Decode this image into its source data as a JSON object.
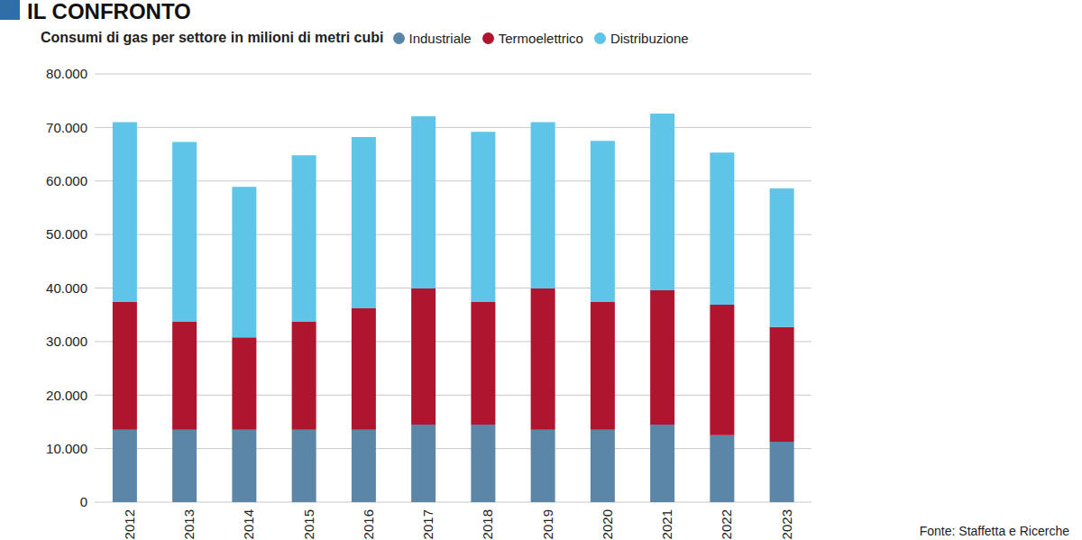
{
  "chart_data": {
    "type": "bar",
    "title": "IL CONFRONTO",
    "subtitle": "Consumi di gas per settore in milioni di metri cubi",
    "source": "Fonte: Staffetta e Ricerche",
    "categories": [
      "2012",
      "2013",
      "2014",
      "2015",
      "2016",
      "2017",
      "2018",
      "2019",
      "2020",
      "2021",
      "2022",
      "2023"
    ],
    "series": [
      {
        "name": "Industriale",
        "color": "#5b86a8",
        "values": [
          13500,
          13500,
          13500,
          13500,
          13500,
          14500,
          14500,
          13500,
          13500,
          14500,
          12500,
          11300
        ]
      },
      {
        "name": "Termoelettrico",
        "color": "#b01530",
        "values": [
          23900,
          20200,
          17300,
          20200,
          22700,
          25400,
          22900,
          26400,
          23900,
          25100,
          24400,
          21400
        ]
      },
      {
        "name": "Distribuzione",
        "color": "#5ec4e8",
        "values": [
          33600,
          33600,
          28100,
          31100,
          32000,
          32200,
          31800,
          31100,
          30100,
          33000,
          28400,
          25900
        ]
      }
    ],
    "ylim": [
      0,
      80000
    ],
    "yticks": [
      0,
      {
        "value": 10000,
        "label": "10.000"
      },
      {
        "value": 20000,
        "label": "20.000"
      },
      {
        "value": 30000,
        "label": "30.000"
      },
      {
        "value": 40000,
        "label": "40.000"
      },
      {
        "value": 50000,
        "label": "50.000"
      },
      {
        "value": 60000,
        "label": "60.000"
      },
      {
        "value": 70000,
        "label": "70.000"
      },
      {
        "value": 80000,
        "label": "80.000"
      }
    ],
    "stacked": true,
    "grid": true,
    "legend": "top"
  }
}
